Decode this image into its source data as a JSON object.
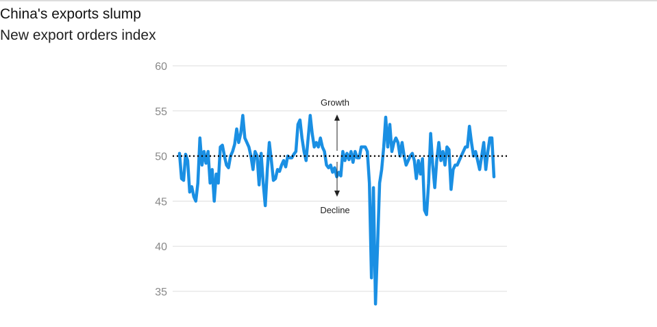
{
  "chart_data": {
    "type": "line",
    "title": "China's exports slump",
    "subtitle": "New export orders index",
    "color": "#1a8fe3",
    "values": [
      50.3,
      47.5,
      47.3,
      50.2,
      49.5,
      46,
      46.6,
      45.5,
      45,
      47,
      52,
      49,
      50.5,
      49.2,
      50.5,
      47,
      48.5,
      45,
      48,
      47,
      51,
      51.2,
      50,
      49,
      48.7,
      50,
      50.5,
      51.3,
      53,
      51.5,
      52.5,
      54.5,
      52,
      51.5,
      51,
      50,
      48.5,
      50.5,
      50,
      46.8,
      50.3,
      47,
      44.5,
      48.5,
      51.5,
      49.5,
      47.3,
      47.5,
      48.5,
      48.3,
      49,
      49.5,
      48.8,
      50,
      49.8,
      49.8,
      50.2,
      50.5,
      53.5,
      54,
      52,
      50.5,
      49.5,
      52,
      54.5,
      52.5,
      51,
      51.5,
      51,
      52,
      51,
      50.5,
      49,
      48.7,
      49,
      48.2,
      48.7,
      47.7,
      48.2,
      47.8,
      50.5,
      49.5,
      50.3,
      49.6,
      50.5,
      49.3,
      50.5,
      49.8,
      49.8,
      51,
      51,
      51,
      50.5,
      47,
      36.5,
      46.5,
      33.6,
      40,
      47,
      48.5,
      51,
      54.3,
      51,
      53.5,
      50.5,
      51.5,
      52,
      51.5,
      50,
      51.5,
      50,
      49,
      49.5,
      50,
      50.3,
      49.5,
      47.5,
      49.5,
      48,
      49.7,
      44,
      43.5,
      47,
      52.5,
      49,
      46.5,
      49.5,
      51.5,
      49.5,
      50.5,
      49,
      51,
      50.7,
      46.3,
      48.5,
      49,
      49,
      49.5,
      50,
      50.5,
      51,
      51,
      53.3,
      51.5,
      50,
      50.5,
      49.5,
      48.5,
      50,
      51.5,
      48.5,
      50.5,
      52,
      52,
      47.7
    ],
    "ylim": [
      35,
      60
    ],
    "yticks": [
      35,
      40,
      45,
      50,
      55,
      60
    ],
    "grid": true,
    "baseline": 50,
    "annotations": {
      "up": "Growth",
      "down": "Decline"
    }
  }
}
